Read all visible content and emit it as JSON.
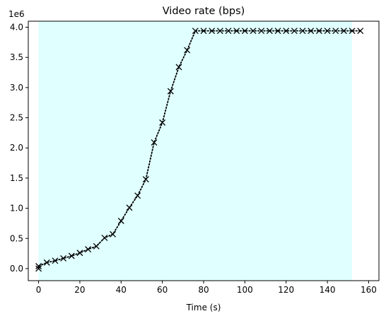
{
  "chart_data": {
    "type": "line",
    "title": "Video rate (bps)",
    "xlabel": "Time (s)",
    "ylabel": "",
    "y_offset_text": "1e6",
    "xlim": [
      -5,
      165
    ],
    "ylim": [
      -200000,
      4100000
    ],
    "x_ticks": [
      0,
      20,
      40,
      60,
      80,
      100,
      120,
      140,
      160
    ],
    "x_tick_labels": [
      "0",
      "20",
      "40",
      "60",
      "80",
      "100",
      "120",
      "140",
      "160"
    ],
    "y_ticks": [
      0,
      500000,
      1000000,
      1500000,
      2000000,
      2500000,
      3000000,
      3500000,
      4000000
    ],
    "y_tick_labels": [
      "0.0",
      "0.5",
      "1.0",
      "1.5",
      "2.0",
      "2.5",
      "3.0",
      "3.5",
      "4.0"
    ],
    "grid": false,
    "shaded_region": {
      "x_start": 0,
      "x_end": 152,
      "color": "#e0ffff"
    },
    "series": [
      {
        "marker": "x",
        "line_style": "dotted",
        "color": "#000000",
        "x": [
          0,
          0,
          4,
          8,
          12,
          16,
          20,
          24,
          28,
          32,
          36,
          40,
          44,
          48,
          52,
          56,
          60,
          64,
          68,
          72,
          76,
          80,
          84,
          88,
          92,
          96,
          100,
          104,
          108,
          112,
          116,
          120,
          124,
          128,
          132,
          136,
          140,
          144,
          148,
          152,
          156
        ],
        "y": [
          0,
          40000,
          100000,
          130000,
          170000,
          210000,
          260000,
          320000,
          370000,
          510000,
          570000,
          790000,
          1010000,
          1210000,
          1480000,
          2090000,
          2420000,
          2940000,
          3340000,
          3620000,
          3940000,
          3940000,
          3940000,
          3940000,
          3940000,
          3940000,
          3940000,
          3940000,
          3940000,
          3940000,
          3940000,
          3940000,
          3940000,
          3940000,
          3940000,
          3940000,
          3940000,
          3940000,
          3940000,
          3940000,
          3940000
        ]
      }
    ]
  }
}
